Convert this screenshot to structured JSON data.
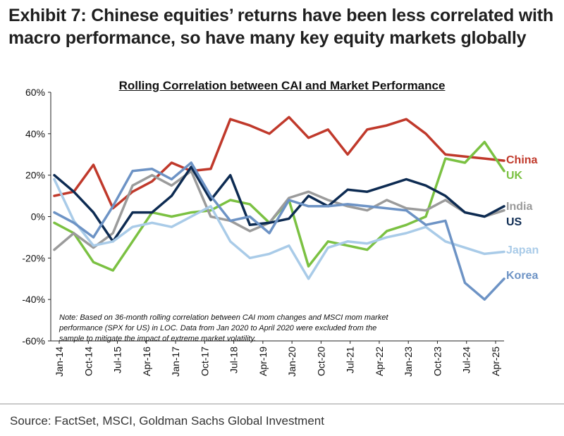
{
  "header": {
    "title": "Exhibit 7: Chinese equities’ returns have been less correlated with macro performance, so have many key equity markets globally"
  },
  "footer": {
    "source": "Source: FactSet, MSCI, Goldman Sachs Global Investment"
  },
  "chart_data": {
    "type": "line",
    "title": "Rolling Correlation between CAI and Market Performance",
    "note": "Note: Based on 36-month rolling correlation between CAI mom changes and MSCI mom market performance (SPX for US) in LOC. Data from Jan 2020 to April 2020 were excluded from the sample to mitigate the impact of extreme market volatility.",
    "xlabel": "",
    "ylabel": "",
    "ylim": [
      -60,
      60
    ],
    "yticks": [
      60,
      40,
      20,
      0,
      -20,
      -40,
      -60
    ],
    "ytick_labels": [
      "60%",
      "40%",
      "20%",
      "0%",
      "-20%",
      "-40%",
      "-60%"
    ],
    "x_tick_labels": [
      "Jan-14",
      "Oct-14",
      "Jul-15",
      "Apr-16",
      "Jan-17",
      "Oct-17",
      "Jul-18",
      "Apr-19",
      "Jan-20",
      "Oct-20",
      "Jul-21",
      "Apr-22",
      "Jan-23",
      "Oct-23",
      "Jul-24",
      "Apr-25"
    ],
    "grid": false,
    "legend": "inline labels at right end of lines",
    "x": [
      "Jan-14",
      "Jul-14",
      "Jan-15",
      "Jul-15",
      "Jan-16",
      "Jul-16",
      "Jan-17",
      "Jul-17",
      "Jan-18",
      "Jul-18",
      "Jan-19",
      "Jul-19",
      "Jan-20",
      "Jul-20",
      "Jan-21",
      "Jul-21",
      "Jan-22",
      "Jul-22",
      "Jan-23",
      "Jul-23",
      "Jan-24",
      "Jul-24",
      "Jan-25",
      "Jul-25"
    ],
    "series": [
      {
        "name": "China",
        "color": "#c0392b",
        "values": [
          10,
          12,
          25,
          4,
          12,
          17,
          26,
          22,
          23,
          47,
          44,
          40,
          48,
          38,
          42,
          30,
          42,
          44,
          47,
          40,
          30,
          29,
          28,
          27
        ]
      },
      {
        "name": "UK",
        "color": "#7bc142",
        "values": [
          -3,
          -8,
          -22,
          -26,
          -12,
          2,
          0,
          2,
          3,
          8,
          6,
          -3,
          8,
          -24,
          -12,
          -14,
          -16,
          -7,
          -4,
          0,
          28,
          26,
          36,
          22
        ]
      },
      {
        "name": "India",
        "color": "#9b9b9b",
        "values": [
          -16,
          -8,
          -15,
          -8,
          15,
          20,
          15,
          22,
          0,
          -2,
          -7,
          -3,
          9,
          12,
          8,
          5,
          3,
          8,
          4,
          3,
          8,
          2,
          0,
          3
        ]
      },
      {
        "name": "US",
        "color": "#0d2b52",
        "values": [
          20,
          12,
          2,
          -12,
          2,
          2,
          10,
          24,
          8,
          20,
          -4,
          -3,
          -1,
          10,
          5,
          13,
          12,
          15,
          18,
          15,
          10,
          2,
          0,
          5
        ]
      },
      {
        "name": "Japan",
        "color": "#a9cbe8",
        "values": [
          18,
          -2,
          -14,
          -12,
          -5,
          -3,
          -5,
          0,
          5,
          -12,
          -20,
          -18,
          -14,
          -30,
          -15,
          -12,
          -13,
          -10,
          -8,
          -5,
          -12,
          -15,
          -18,
          -17
        ]
      },
      {
        "name": "Korea",
        "color": "#6d93c5",
        "values": [
          2,
          -3,
          -10,
          5,
          22,
          23,
          18,
          26,
          10,
          -2,
          0,
          -8,
          8,
          5,
          5,
          6,
          5,
          4,
          3,
          -4,
          -2,
          -32,
          -40,
          -30
        ]
      }
    ]
  }
}
